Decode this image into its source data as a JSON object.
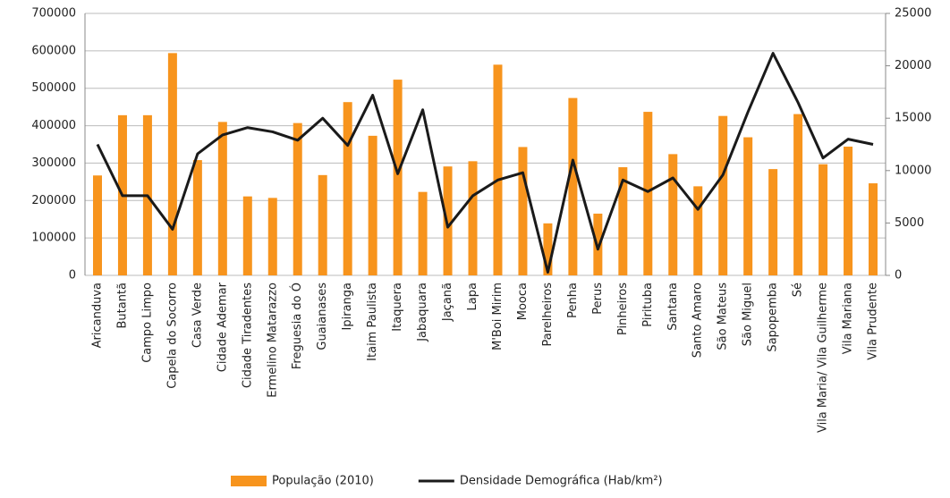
{
  "chart_data": {
    "type": "bar_line",
    "categories": [
      "Aricanduva",
      "Butantã",
      "Campo Limpo",
      "Capela do Socorro",
      "Casa Verde",
      "Cidade Ademar",
      "Cidade Tiradentes",
      "Ermelino Matarazzo",
      "Freguesia do Ó",
      "Guaianases",
      "Ipiranga",
      "Itaim Paulista",
      "Itaquera",
      "Jabaquara",
      "Jaçanã",
      "Lapa",
      "M'Boi Mirim",
      "Mooca",
      "Parelheiros",
      "Penha",
      "Perus",
      "Pinheiros",
      "Pirituba",
      "Santana",
      "Santo Amaro",
      "São Mateus",
      "São Miguel",
      "Sapopemba",
      "Sé",
      "Vila Maria/ Vila Guilherme",
      "Vila Mariana",
      "Vila Prudente"
    ],
    "series": [
      {
        "name": "População (2010)",
        "type": "bar",
        "color": "#f7941d",
        "values": [
          267000,
          428000,
          428000,
          594000,
          308000,
          410000,
          211000,
          207000,
          407000,
          268000,
          463000,
          373000,
          523000,
          223000,
          291000,
          305000,
          563000,
          343000,
          139000,
          474000,
          165000,
          289000,
          437000,
          324000,
          238000,
          426000,
          369000,
          284000,
          431000,
          297000,
          344000,
          246000
        ]
      },
      {
        "name": "Densidade Demográfica  (Hab/km²)",
        "type": "line",
        "axis": "y2",
        "color": "#1a1a1a",
        "values": [
          12500,
          7600,
          7600,
          4400,
          11600,
          13400,
          14100,
          13700,
          12900,
          15000,
          12400,
          17200,
          9700,
          15800,
          4600,
          7600,
          9100,
          9800,
          300,
          11000,
          2500,
          9100,
          8000,
          9300,
          6300,
          9600,
          15600,
          21200,
          16500,
          11200,
          13000,
          12500
        ]
      }
    ],
    "ylim": [
      0,
      700000
    ],
    "yticks": [
      0,
      100000,
      200000,
      300000,
      400000,
      500000,
      600000,
      700000
    ],
    "y2lim": [
      0,
      25000
    ],
    "y2ticks": [
      0,
      5000,
      10000,
      15000,
      20000,
      25000
    ],
    "grid": true,
    "legend": "bottom"
  }
}
